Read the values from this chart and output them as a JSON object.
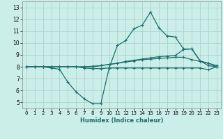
{
  "xlabel": "Humidex (Indice chaleur)",
  "bg_color": "#cceee8",
  "grid_color": "#aad4ce",
  "line_color": "#1a6e6e",
  "xlim": [
    -0.5,
    23.5
  ],
  "ylim": [
    4.5,
    13.5
  ],
  "xticks": [
    0,
    1,
    2,
    3,
    4,
    5,
    6,
    7,
    8,
    9,
    10,
    11,
    12,
    13,
    14,
    15,
    16,
    17,
    18,
    19,
    20,
    21,
    22,
    23
  ],
  "yticks": [
    5,
    6,
    7,
    8,
    9,
    10,
    11,
    12,
    13
  ],
  "line1_x": [
    0,
    1,
    2,
    3,
    4,
    5,
    6,
    7,
    8,
    9,
    10,
    11,
    12,
    13,
    14,
    15,
    16,
    17,
    18,
    19,
    20,
    21,
    22,
    23
  ],
  "line1_y": [
    8.0,
    8.0,
    8.0,
    7.9,
    7.8,
    6.7,
    5.9,
    5.3,
    4.9,
    4.9,
    7.9,
    9.8,
    10.2,
    11.2,
    11.5,
    12.6,
    11.3,
    10.6,
    10.5,
    9.5,
    9.5,
    8.5,
    8.3,
    8.1
  ],
  "line2_x": [
    0,
    1,
    2,
    3,
    4,
    5,
    6,
    7,
    8,
    9,
    10,
    11,
    12,
    13,
    14,
    15,
    16,
    17,
    18,
    19,
    20,
    21,
    22,
    23
  ],
  "line2_y": [
    8.0,
    8.0,
    8.0,
    8.0,
    8.0,
    8.0,
    8.0,
    8.0,
    8.0,
    8.1,
    8.2,
    8.3,
    8.45,
    8.55,
    8.65,
    8.75,
    8.85,
    8.9,
    8.95,
    9.45,
    9.5,
    8.5,
    8.1,
    8.0
  ],
  "line3_x": [
    0,
    1,
    2,
    3,
    4,
    5,
    6,
    7,
    8,
    9,
    10,
    11,
    12,
    13,
    14,
    15,
    16,
    17,
    18,
    19,
    20,
    21,
    22,
    23
  ],
  "line3_y": [
    8.0,
    8.0,
    8.0,
    8.0,
    8.0,
    8.0,
    8.0,
    8.0,
    8.05,
    8.1,
    8.2,
    8.3,
    8.4,
    8.5,
    8.6,
    8.65,
    8.7,
    8.75,
    8.8,
    8.8,
    8.6,
    8.45,
    8.3,
    8.0
  ],
  "line4_x": [
    0,
    1,
    2,
    3,
    4,
    5,
    6,
    7,
    8,
    9,
    10,
    11,
    12,
    13,
    14,
    15,
    16,
    17,
    18,
    19,
    20,
    21,
    22,
    23
  ],
  "line4_y": [
    8.0,
    8.0,
    8.0,
    8.0,
    8.0,
    8.0,
    8.0,
    7.9,
    7.85,
    7.85,
    7.9,
    7.9,
    7.9,
    7.9,
    7.9,
    7.9,
    7.9,
    7.9,
    7.9,
    7.9,
    7.9,
    7.9,
    7.75,
    8.0
  ]
}
